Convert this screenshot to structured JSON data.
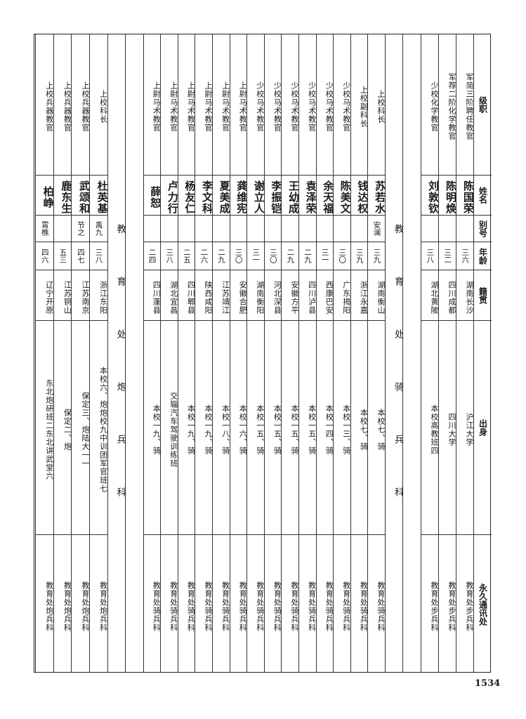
{
  "header": {
    "rank": "级职",
    "name": "姓名",
    "alias": "别号",
    "age": "年龄",
    "native_place": "籍贯",
    "origin": "出身",
    "address": "永久通讯处"
  },
  "groups": [
    {
      "section_label": "",
      "rows": [
        {
          "rank": "军简三阶聘任教官",
          "name": "陈国荣",
          "alias": "",
          "age": "三六",
          "native_place": "湖南长沙",
          "origin": "沪江大学",
          "address": "教育处步兵科"
        },
        {
          "rank": "军荐二阶化学教官",
          "name": "陈明焕",
          "alias": "",
          "age": "三二",
          "native_place": "四川成都",
          "origin": "四川大学",
          "address": "教育处步兵科"
        },
        {
          "rank": "少校化学教官",
          "name": "刘敦钦",
          "alias": "",
          "age": "三八",
          "native_place": "湖北黄陂",
          "origin": "本校高教班四",
          "address": "教育处步兵科"
        }
      ]
    },
    {
      "section_label": "教育处骑兵科",
      "rows": [
        {
          "rank": "上校科长",
          "name": "苏若水",
          "alias": "安澜",
          "age": "三九",
          "native_place": "湖南衡山",
          "origin": "本校七、骑",
          "address": "教育处骑兵科"
        },
        {
          "rank": "上校副科长",
          "name": "钱达权",
          "alias": "",
          "age": "三九",
          "native_place": "浙江永嘉",
          "origin": "本校七、骑",
          "address": "教育处骑兵科"
        },
        {
          "rank": "少校马术教官",
          "name": "陈美文",
          "alias": "",
          "age": "三〇",
          "native_place": "广东揭阳",
          "origin": "本校一三、骑",
          "address": "教育处骑兵科"
        },
        {
          "rank": "少校马术教官",
          "name": "余天福",
          "alias": "",
          "age": "三一",
          "native_place": "西康巴安",
          "origin": "本校一四、骑",
          "address": "教育处骑兵科"
        },
        {
          "rank": "少校马术教官",
          "name": "袁泽荣",
          "alias": "",
          "age": "二九",
          "native_place": "四川泸县",
          "origin": "本校一五、骑",
          "address": "教育处骑兵科"
        },
        {
          "rank": "少校马术教官",
          "name": "王幼成",
          "alias": "",
          "age": "二九",
          "native_place": "安徽方平",
          "origin": "本校一五、骑",
          "address": "教育处骑兵科"
        },
        {
          "rank": "少校马术教官",
          "name": "李振铠",
          "alias": "",
          "age": "三〇",
          "native_place": "河北深县",
          "origin": "本校一五、骑",
          "address": "教育处骑兵科"
        },
        {
          "rank": "少校马术教官",
          "name": "谢立人",
          "alias": "",
          "age": "三一",
          "native_place": "湖南衡阳",
          "origin": "本校一五、骑",
          "address": "教育处骑兵科"
        },
        {
          "rank": "上尉马术教官",
          "name": "龚维宪",
          "alias": "",
          "age": "三〇",
          "native_place": "安徽合肥",
          "origin": "本校一六、骑",
          "address": "教育处骑兵科"
        },
        {
          "rank": "上尉马术教官",
          "name": "夏美成",
          "alias": "",
          "age": "二九",
          "native_place": "江苏靖江",
          "origin": "本校一八、骑",
          "address": "教育处骑兵科"
        },
        {
          "rank": "上尉马术教官",
          "name": "李文科",
          "alias": "",
          "age": "二六",
          "native_place": "陕西咸阳",
          "origin": "本校一九、骑",
          "address": "教育处骑兵科"
        },
        {
          "rank": "上尉马术教官",
          "name": "杨友仁",
          "alias": "",
          "age": "二五",
          "native_place": "四川郫县",
          "origin": "本校一九、骑",
          "address": "教育处骑兵科"
        },
        {
          "rank": "上尉马术教官",
          "name": "卢力行",
          "alias": "",
          "age": "三八",
          "native_place": "湖北宜昌",
          "origin": "交辎汽车驾驶训练班",
          "address": "教育处骑兵科"
        },
        {
          "rank": "上尉马术教官",
          "name": "薛恕",
          "alias": "",
          "age": "二四",
          "native_place": "四川蓬县",
          "origin": "本校一九、骑",
          "address": "教育处骑兵科"
        }
      ]
    },
    {
      "section_label": "教育处炮兵科",
      "rows": [
        {
          "rank": "上校科长",
          "name": "杜英基",
          "alias": "禹九",
          "age": "三八",
          "native_place": "浙江东阳",
          "origin": "本校六、炮炮校九中训团军官班七",
          "address": "教育处炮兵科"
        },
        {
          "rank": "上校兵器教官",
          "name": "武颂和",
          "alias": "节之",
          "age": "四七",
          "native_place": "江苏南京",
          "origin": "保定三、炮陆大一一",
          "address": "教育处炮兵科"
        },
        {
          "rank": "上校兵器教官",
          "name": "鹿东生",
          "alias": "",
          "age": "五三",
          "native_place": "江苏铜山",
          "origin": "保定二、炮",
          "address": "教育处炮兵科"
        },
        {
          "rank": "上校兵器教官",
          "name": "柏峥",
          "alias": "霄樵",
          "age": "四六",
          "native_place": "辽宁开原",
          "origin": "东北炮研班二东北讲武堂六",
          "address": "教育处炮兵科"
        }
      ]
    }
  ],
  "page_number": "1534"
}
